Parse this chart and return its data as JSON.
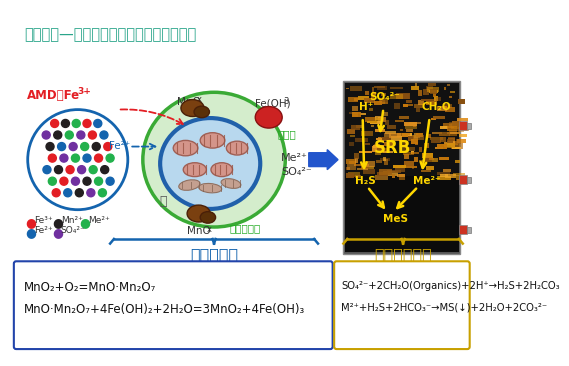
{
  "title": "铁锰氧化—硫酸盐还原被动式生物处理技术",
  "title_color": "#2aa58a",
  "background_color": "#ffffff",
  "eq1_line1": "MnO₂+O₂=MnO·Mn₂O₇",
  "eq1_line2": "MnO·Mn₂O₇+4Fe(OH)₂+2H₂O=3MnO₂+4Fe(OH)₃",
  "eq2_line1": "SO₄²⁻+2CH₂O(Organics)+2H⁺→H₂S+2H₂CO₃",
  "eq2_line2": "M²⁺+H₂S+2HCO₃⁻→MS(↓)+2H₂O+2CO₃²⁻"
}
